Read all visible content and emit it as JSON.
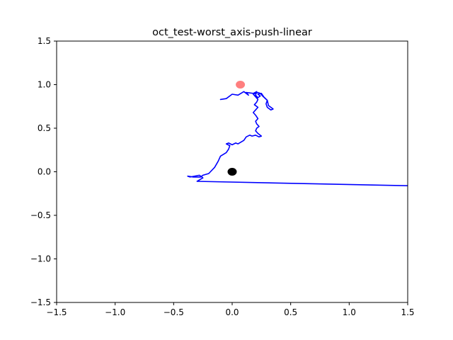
{
  "chart_data": {
    "type": "line",
    "title": "oct_test-worst_axis-push-linear",
    "xlabel": "",
    "ylabel": "",
    "xlim": [
      -1.5,
      1.5
    ],
    "ylim": [
      -1.5,
      1.5
    ],
    "xticks": [
      -1.5,
      -1.0,
      -0.5,
      0.0,
      0.5,
      1.0,
      1.5
    ],
    "yticks": [
      -1.5,
      -1.0,
      -0.5,
      0.0,
      0.5,
      1.0,
      1.5
    ],
    "xtick_labels": [
      "−1.5",
      "−1.0",
      "−0.5",
      "0.0",
      "0.5",
      "1.0",
      "1.5"
    ],
    "ytick_labels": [
      "−1.5",
      "−1.0",
      "−0.5",
      "0.0",
      "0.5",
      "1.0",
      "1.5"
    ],
    "grid": false,
    "series": [
      {
        "color": "#0000ff",
        "x": [
          1.5,
          -0.3,
          -0.25,
          -0.28,
          -0.36,
          -0.38,
          -0.33,
          -0.27,
          -0.25,
          -0.2,
          -0.15,
          -0.12,
          -0.1,
          -0.05,
          -0.03,
          -0.02,
          -0.05,
          -0.03,
          0.0,
          0.03,
          0.05,
          0.1,
          0.12,
          0.15,
          0.17,
          0.2,
          0.23,
          0.25,
          0.22,
          0.2,
          0.21,
          0.23,
          0.21,
          0.2,
          0.22,
          0.2,
          0.18,
          0.2,
          0.22,
          0.19,
          0.21,
          0.22,
          0.2,
          0.18,
          0.22,
          0.24,
          0.26,
          0.3,
          0.31,
          0.35,
          0.33,
          0.3,
          0.29,
          0.3,
          0.27,
          0.25,
          0.22,
          0.24,
          0.22,
          0.2,
          0.21,
          0.18,
          0.12,
          0.14,
          0.1,
          0.05,
          0.0,
          -0.05,
          -0.1
        ],
        "y": [
          -0.16,
          -0.11,
          -0.07,
          -0.04,
          -0.06,
          -0.05,
          -0.06,
          -0.06,
          -0.04,
          -0.02,
          0.05,
          0.12,
          0.18,
          0.22,
          0.26,
          0.3,
          0.32,
          0.33,
          0.31,
          0.33,
          0.32,
          0.36,
          0.4,
          0.42,
          0.41,
          0.42,
          0.4,
          0.41,
          0.44,
          0.47,
          0.5,
          0.52,
          0.55,
          0.58,
          0.61,
          0.65,
          0.68,
          0.71,
          0.74,
          0.77,
          0.8,
          0.83,
          0.86,
          0.89,
          0.91,
          0.9,
          0.87,
          0.82,
          0.76,
          0.72,
          0.71,
          0.74,
          0.78,
          0.82,
          0.86,
          0.9,
          0.89,
          0.87,
          0.85,
          0.88,
          0.92,
          0.9,
          0.91,
          0.88,
          0.92,
          0.88,
          0.89,
          0.84,
          0.83
        ]
      }
    ],
    "markers": [
      {
        "x": 0.0,
        "y": 0.0,
        "color": "#000000",
        "opacity": 1.0
      },
      {
        "x": 0.07,
        "y": 1.0,
        "color": "#ff0000",
        "opacity": 0.5
      }
    ]
  }
}
